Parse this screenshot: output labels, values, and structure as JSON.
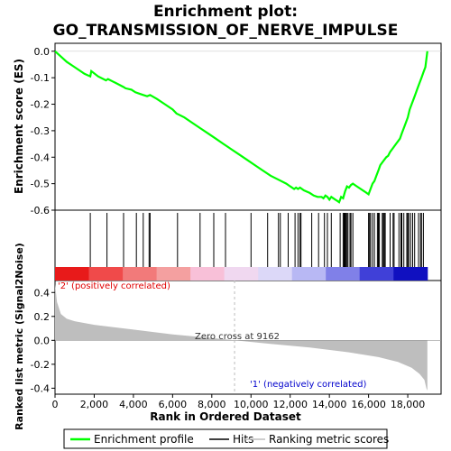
{
  "chart_data": {
    "type": "line",
    "title_line1": "Enrichment plot:",
    "title_line2": "GO_TRANSMISSION_OF_NERVE_IMPULSE",
    "ylabel_top": "Enrichment score (ES)",
    "ylabel_bottom": "Ranked list metric (Signal2Noise)",
    "xlabel": "Rank in Ordered Dataset",
    "xlim": [
      0,
      19700
    ],
    "x_ticks": [
      "0",
      "2,000",
      "4,000",
      "6,000",
      "8,000",
      "10,000",
      "12,000",
      "14,000",
      "16,000",
      "18,000"
    ],
    "x_tick_values": [
      0,
      2000,
      4000,
      6000,
      8000,
      10000,
      12000,
      14000,
      16000,
      18000
    ],
    "es_ylim": [
      -0.6,
      0.03
    ],
    "es_ticks": [
      "0.0",
      "-0.1",
      "-0.2",
      "-0.3",
      "-0.4",
      "-0.5",
      "-0.6"
    ],
    "es_tick_values": [
      0,
      -0.1,
      -0.2,
      -0.3,
      -0.4,
      -0.5,
      -0.6
    ],
    "metric_ylim": [
      -0.45,
      0.5
    ],
    "metric_ticks": [
      "0.4",
      "0.2",
      "0.0",
      "-0.2",
      "-0.4"
    ],
    "metric_tick_values": [
      0.4,
      0.2,
      0,
      -0.2,
      -0.4
    ],
    "enrichment_profile": {
      "name": "Enrichment profile",
      "color": "#00ff00",
      "x": [
        0,
        300,
        600,
        900,
        1200,
        1500,
        1800,
        1850,
        2200,
        2600,
        2700,
        3100,
        3500,
        3600,
        3900,
        4100,
        4300,
        4500,
        4700,
        4850,
        5200,
        5600,
        6000,
        6200,
        6600,
        7000,
        7400,
        7800,
        8200,
        8600,
        9000,
        9400,
        9800,
        10200,
        10600,
        11000,
        11400,
        11800,
        12000,
        12200,
        12300,
        12400,
        12500,
        12700,
        13000,
        13200,
        13400,
        13600,
        13700,
        13800,
        13900,
        14000,
        14100,
        14200,
        14300,
        14400,
        14500,
        14600,
        14700,
        14800,
        14900,
        15000,
        15100,
        15200,
        15400,
        15600,
        15800,
        16000,
        16100,
        16200,
        16300,
        16400,
        16500,
        16600,
        16700,
        16800,
        16900,
        17000,
        17100,
        17200,
        17300,
        17400,
        17500,
        17600,
        17700,
        17800,
        17900,
        18000,
        18100,
        18200,
        18300,
        18400,
        18500,
        18600,
        18700,
        18800,
        18900,
        19000
      ],
      "y": [
        0.0,
        -0.02,
        -0.04,
        -0.055,
        -0.07,
        -0.085,
        -0.095,
        -0.075,
        -0.095,
        -0.11,
        -0.105,
        -0.12,
        -0.135,
        -0.14,
        -0.145,
        -0.155,
        -0.16,
        -0.165,
        -0.17,
        -0.165,
        -0.18,
        -0.2,
        -0.22,
        -0.235,
        -0.25,
        -0.27,
        -0.29,
        -0.31,
        -0.33,
        -0.35,
        -0.37,
        -0.39,
        -0.41,
        -0.43,
        -0.45,
        -0.47,
        -0.485,
        -0.5,
        -0.51,
        -0.52,
        -0.515,
        -0.52,
        -0.515,
        -0.525,
        -0.535,
        -0.545,
        -0.55,
        -0.55,
        -0.555,
        -0.545,
        -0.55,
        -0.56,
        -0.55,
        -0.555,
        -0.56,
        -0.565,
        -0.57,
        -0.55,
        -0.555,
        -0.53,
        -0.51,
        -0.515,
        -0.505,
        -0.5,
        -0.51,
        -0.52,
        -0.53,
        -0.54,
        -0.52,
        -0.5,
        -0.49,
        -0.47,
        -0.45,
        -0.43,
        -0.42,
        -0.41,
        -0.4,
        -0.395,
        -0.38,
        -0.37,
        -0.36,
        -0.35,
        -0.34,
        -0.33,
        -0.31,
        -0.29,
        -0.27,
        -0.25,
        -0.22,
        -0.2,
        -0.18,
        -0.16,
        -0.14,
        -0.12,
        -0.1,
        -0.08,
        -0.06,
        0.0
      ]
    },
    "hits": {
      "name": "Hits",
      "color": "#000000",
      "x": [
        1800,
        2650,
        3500,
        4150,
        4500,
        4800,
        4850,
        6250,
        7400,
        8100,
        8700,
        10000,
        10850,
        11400,
        11500,
        11900,
        12250,
        12400,
        12500,
        12550,
        13100,
        13450,
        13750,
        13900,
        14100,
        14550,
        14700,
        14750,
        14800,
        14850,
        14900,
        14950,
        15050,
        15100,
        15200,
        16000,
        16050,
        16100,
        16200,
        16300,
        16450,
        16500,
        16550,
        16700,
        16750,
        16800,
        16850,
        17100,
        17250,
        17300,
        17550,
        17650,
        17700,
        17800,
        17950,
        18000,
        18050,
        18150,
        18250,
        18350,
        18550,
        18650,
        18700,
        18800
      ]
    },
    "ranking_metric": {
      "name": "Ranking metric scores",
      "color": "#bebebe",
      "x": [
        0,
        100,
        300,
        600,
        1000,
        2000,
        4000,
        6000,
        8000,
        9162,
        11000,
        13000,
        15000,
        16500,
        17500,
        18200,
        18600,
        18850,
        18950,
        19000
      ],
      "y": [
        0.47,
        0.32,
        0.22,
        0.18,
        0.16,
        0.13,
        0.09,
        0.05,
        0.02,
        0.0,
        -0.03,
        -0.06,
        -0.1,
        -0.14,
        -0.18,
        -0.23,
        -0.28,
        -0.33,
        -0.4,
        -0.42
      ]
    },
    "zero_cross_label": "Zero cross at 9162",
    "zero_cross": 9162,
    "pos_label": "'2' (positively correlated)",
    "neg_label": "'1' (negatively correlated)",
    "pos_color": "#ff0000",
    "neg_color": "#0000cc",
    "heatbar_colors": [
      "#e81a1a",
      "#f04a4a",
      "#f27a7a",
      "#f4a0a0",
      "#f8c0d8",
      "#f0d8f0",
      "#dcd8f8",
      "#b8b8f4",
      "#8080e8",
      "#4040d8",
      "#1010c0"
    ],
    "legend": [
      "Enrichment profile",
      "Hits",
      "Ranking metric scores"
    ]
  }
}
